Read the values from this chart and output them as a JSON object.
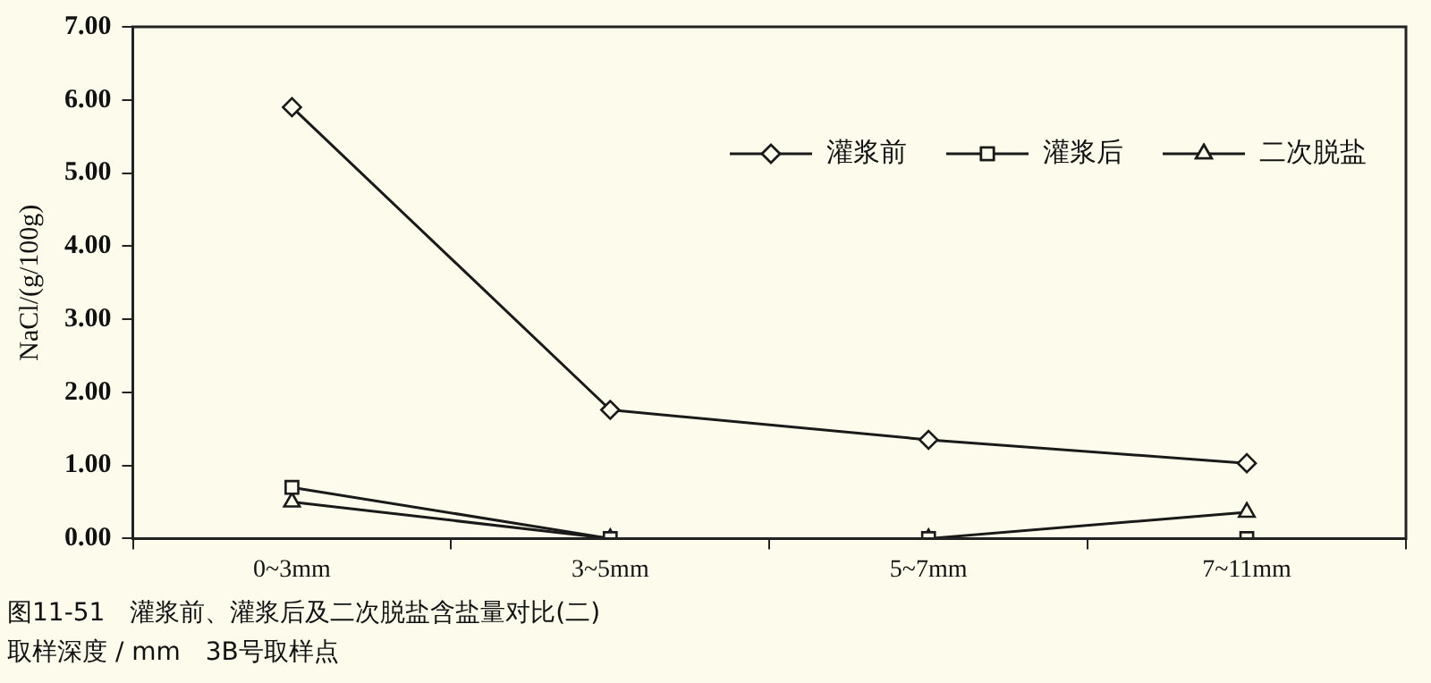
{
  "chart_data": {
    "type": "line",
    "title": "图11-51　灌浆前、灌浆后及二次脱盐含盐量对比(二)",
    "annotations": [
      "取样深度 / mm　3B号取样点"
    ],
    "ylabel": "NaCl/(g/100g)",
    "categories": [
      "0~3mm",
      "3~5mm",
      "5~7mm",
      "7~11mm"
    ],
    "series": [
      {
        "name": "灌浆前",
        "color": "#1a1a1a",
        "marker": "diamond",
        "values": [
          5.9,
          1.76,
          1.35,
          1.03
        ]
      },
      {
        "name": "灌浆后",
        "color": "#1a1a1a",
        "marker": "square",
        "values": [
          0.7,
          0,
          0,
          0
        ]
      },
      {
        "name": "二次脱盐",
        "color": "#1a1a1a",
        "marker": "triangle",
        "values": [
          0.5,
          0,
          0,
          0.36
        ]
      }
    ],
    "ylim": [
      0,
      7
    ],
    "yticks": [
      {
        "value": 0,
        "label": "0.00"
      },
      {
        "value": 1,
        "label": "1.00"
      },
      {
        "value": 2,
        "label": "2.00"
      },
      {
        "value": 3,
        "label": "3.00"
      },
      {
        "value": 4,
        "label": "4.00"
      },
      {
        "value": 5,
        "label": "5.00"
      },
      {
        "value": 6,
        "label": "6.00"
      },
      {
        "value": 7,
        "label": "7.00"
      }
    ],
    "grid": false,
    "legend": "top right",
    "line_style": "solid"
  }
}
